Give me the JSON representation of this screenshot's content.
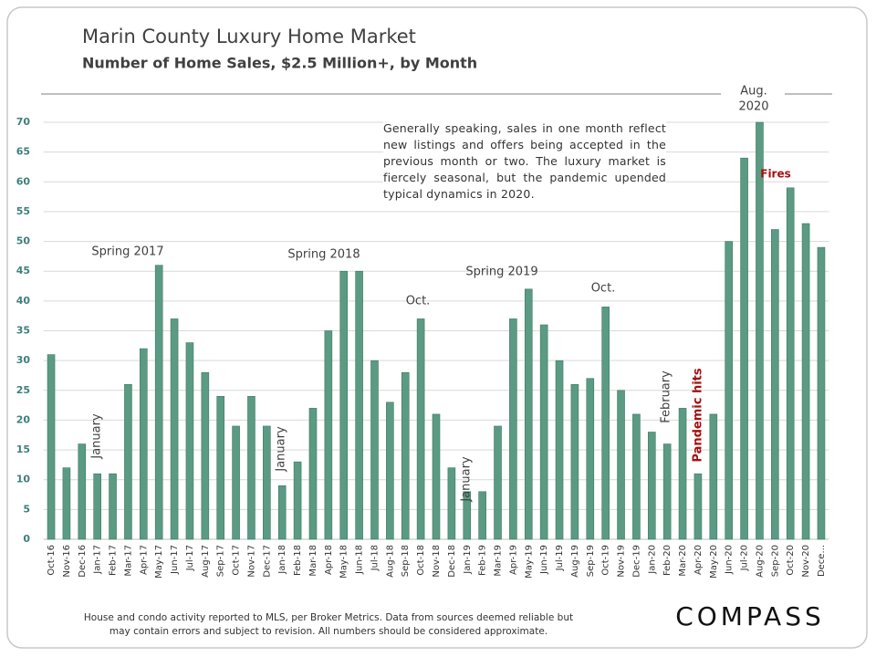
{
  "chart_data": {
    "type": "bar",
    "title": "Marin County Luxury Home Market",
    "subtitle": "Number of Home Sales, $2.5 Million+, by Month",
    "categories": [
      "Oct-16",
      "Nov-16",
      "Dec-16",
      "Jan-17",
      "Feb-17",
      "Mar-17",
      "Apr-17",
      "May-17",
      "Jun-17",
      "Jul-17",
      "Aug-17",
      "Sep-17",
      "Oct-17",
      "Nov-17",
      "Dec-17",
      "Jan-18",
      "Feb-18",
      "Mar-18",
      "Apr-18",
      "May-18",
      "Jun-18",
      "Jul-18",
      "Aug-18",
      "Sep-18",
      "Oct-18",
      "Nov-18",
      "Dec-18",
      "Jan-19",
      "Feb-19",
      "Mar-19",
      "Apr-19",
      "May-19",
      "Jun-19",
      "Jul-19",
      "Aug-19",
      "Sep-19",
      "Oct-19",
      "Nov-19",
      "Dec-19",
      "Jan-20",
      "Feb-20",
      "Mar-20",
      "Apr-20",
      "May-20",
      "Jun-20",
      "Jul-20",
      "Aug-20",
      "Sep-20",
      "Oct-20",
      "Nov-20",
      "Dece..."
    ],
    "values": [
      31,
      12,
      16,
      11,
      11,
      26,
      32,
      46,
      37,
      33,
      28,
      24,
      19,
      24,
      19,
      9,
      13,
      22,
      35,
      45,
      45,
      30,
      23,
      28,
      37,
      21,
      12,
      8,
      8,
      19,
      37,
      42,
      36,
      30,
      26,
      27,
      39,
      25,
      21,
      18,
      16,
      22,
      11,
      21,
      50,
      64,
      70,
      52,
      59,
      53,
      49
    ],
    "color": "#5b9a83",
    "ylim": [
      0,
      70
    ],
    "yticks": [
      0,
      5,
      10,
      15,
      20,
      25,
      30,
      35,
      40,
      45,
      50,
      55,
      60,
      65,
      70
    ],
    "grid": true,
    "note": "Generally speaking, sales in one month reflect new listings and offers being accepted in the previous month or two. The luxury market is fiercely seasonal, but the pandemic upended typical dynamics in 2020.",
    "annotations": [
      {
        "text": "Spring 2017",
        "color": "#404040"
      },
      {
        "text": "Spring 2018",
        "color": "#404040"
      },
      {
        "text": "Oct.",
        "color": "#404040"
      },
      {
        "text": "Spring 2019",
        "color": "#404040"
      },
      {
        "text": "Oct.",
        "color": "#404040"
      },
      {
        "text": "Aug.",
        "color": "#404040"
      },
      {
        "text": "2020",
        "color": "#404040"
      },
      {
        "text": "Fires",
        "color": "#a50f0f"
      },
      {
        "text": "January",
        "color": "#404040"
      },
      {
        "text": "January",
        "color": "#404040"
      },
      {
        "text": "January",
        "color": "#404040"
      },
      {
        "text": "February",
        "color": "#404040"
      },
      {
        "text": "Pandemic hits",
        "color": "#a50f0f"
      }
    ],
    "footnote": [
      "House and condo activity reported to MLS, per Broker Metrics. Data from sources deemed reliable but",
      "may contain errors and subject to revision. All numbers should be considered approximate."
    ],
    "logo": "COMPASS"
  }
}
